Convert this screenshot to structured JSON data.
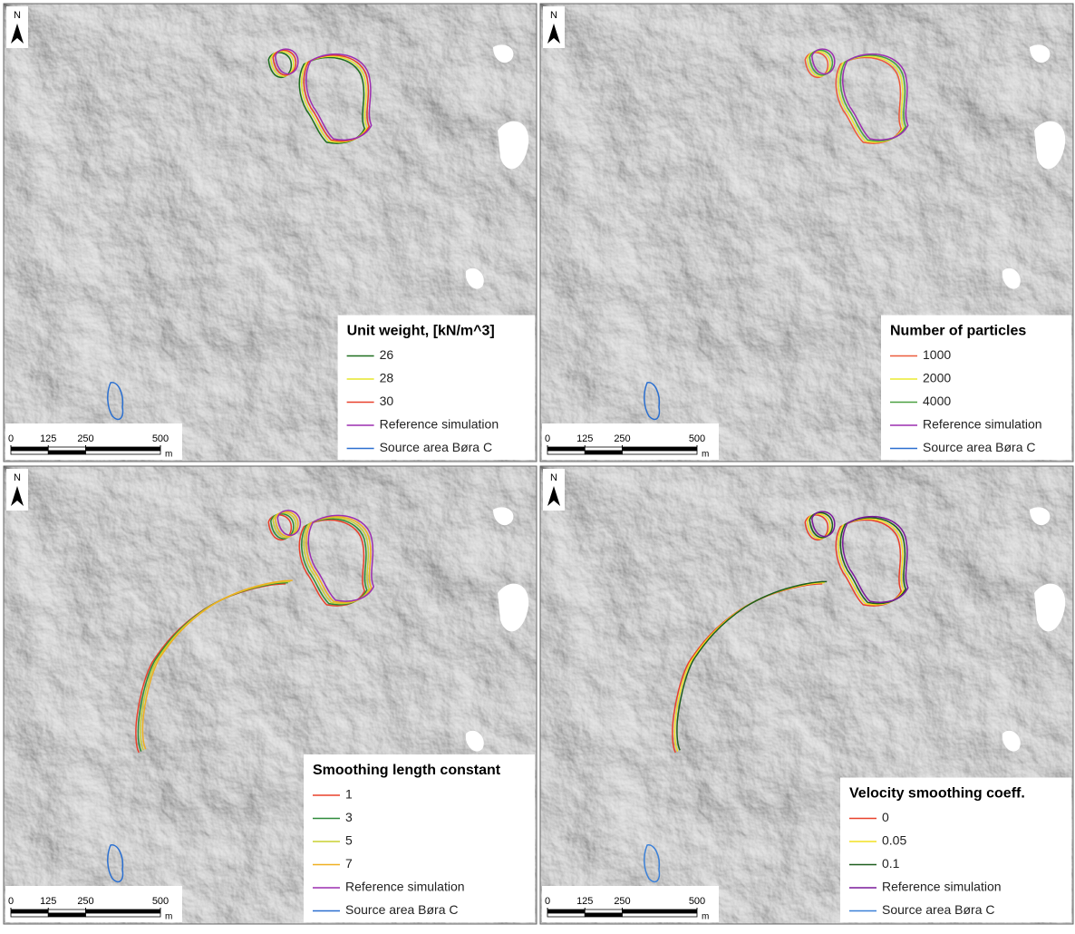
{
  "panels": [
    {
      "north": "N",
      "legend": {
        "title": "Unit weight, [kN/m^3]",
        "entries": [
          {
            "label": "26",
            "color": "#1e6e1e"
          },
          {
            "label": "28",
            "color": "#e6e62a"
          },
          {
            "label": "30",
            "color": "#e8402a"
          },
          {
            "label": "Reference simulation",
            "color": "#9b2fb0"
          },
          {
            "label": "Source area Børa C",
            "color": "#2a6fd0"
          }
        ]
      },
      "scale": {
        "ticks": [
          0,
          125,
          250,
          500
        ],
        "unit": "m"
      }
    },
    {
      "north": "N",
      "legend": {
        "title": "Number of particles",
        "entries": [
          {
            "label": "1000",
            "color": "#ec5a3a"
          },
          {
            "label": "2000",
            "color": "#eaea30"
          },
          {
            "label": "4000",
            "color": "#4aa040"
          },
          {
            "label": "Reference simulation",
            "color": "#9b2fb0"
          },
          {
            "label": "Source area Børa C",
            "color": "#2a6fd0"
          }
        ]
      },
      "scale": {
        "ticks": [
          0,
          125,
          250,
          500
        ],
        "unit": "m"
      }
    },
    {
      "north": "N",
      "legend": {
        "title": "Smoothing length constant",
        "entries": [
          {
            "label": "1",
            "color": "#e8402a"
          },
          {
            "label": "3",
            "color": "#2e8a3a"
          },
          {
            "label": "5",
            "color": "#c8d030"
          },
          {
            "label": "7",
            "color": "#f0b020"
          },
          {
            "label": "Reference simulation",
            "color": "#9b2fb0"
          },
          {
            "label": "Source area Børa C",
            "color": "#2a6fd0"
          }
        ]
      },
      "scale": {
        "ticks": [
          0,
          125,
          250,
          500
        ],
        "unit": "m"
      }
    },
    {
      "north": "N",
      "legend": {
        "title": "Velocity smoothing coeff.",
        "entries": [
          {
            "label": "0",
            "color": "#e8402a"
          },
          {
            "label": "0.05",
            "color": "#f2e020"
          },
          {
            "label": "0.1",
            "color": "#1e5e1e"
          },
          {
            "label": "Reference simulation",
            "color": "#7a1a9a"
          },
          {
            "label": "Source area Børa C",
            "color": "#3a80d8"
          }
        ]
      },
      "scale": {
        "ticks": [
          0,
          125,
          250,
          500
        ],
        "unit": "m"
      }
    }
  ]
}
